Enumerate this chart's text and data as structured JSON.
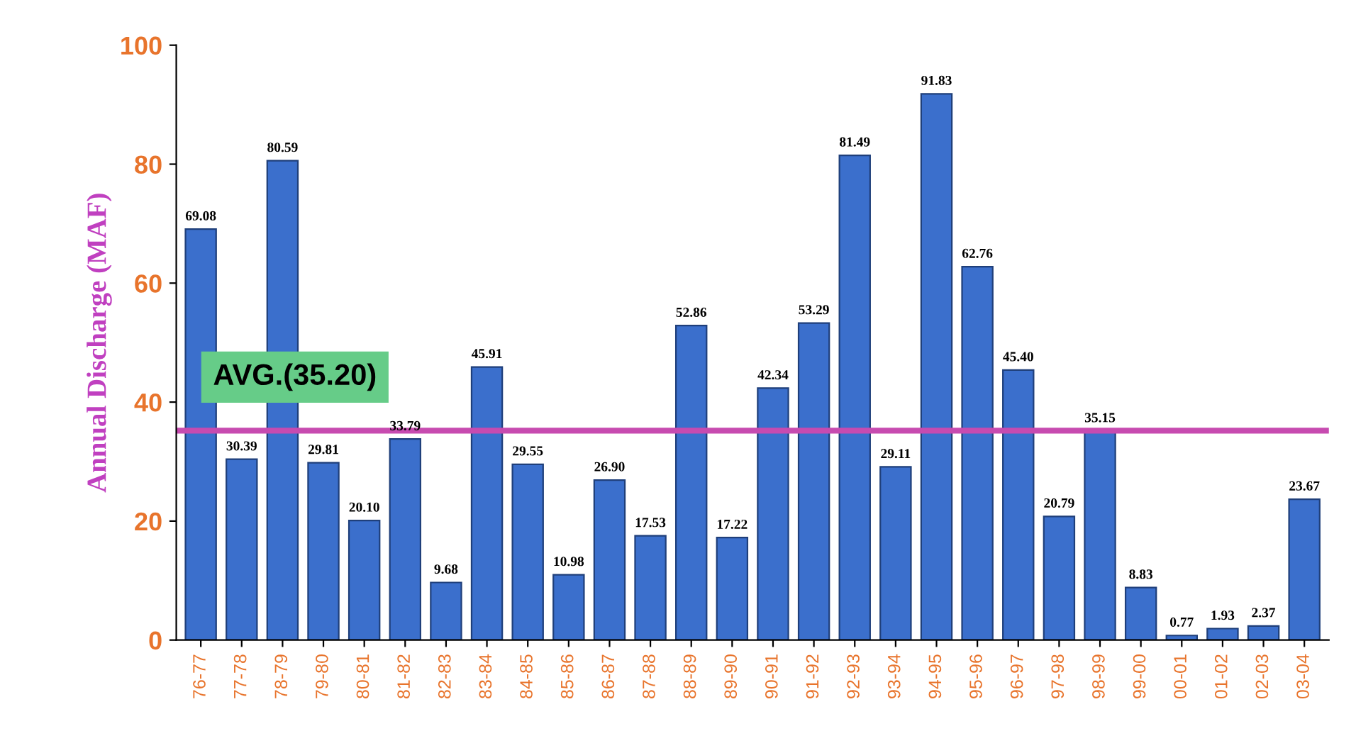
{
  "chart_data": {
    "type": "bar",
    "ylabel": "Annual Discharge (MAF)",
    "categories": [
      "76-77",
      "77-78",
      "78-79",
      "79-80",
      "80-81",
      "81-82",
      "82-83",
      "83-84",
      "84-85",
      "85-86",
      "86-87",
      "87-88",
      "88-89",
      "89-90",
      "90-91",
      "91-92",
      "92-93",
      "93-94",
      "94-95",
      "95-96",
      "96-97",
      "97-98",
      "98-99",
      "99-00",
      "00-01",
      "01-02",
      "02-03",
      "03-04"
    ],
    "values": [
      69.08,
      30.39,
      80.59,
      29.81,
      20.1,
      33.79,
      9.68,
      45.91,
      29.55,
      10.98,
      26.9,
      17.53,
      52.86,
      17.22,
      42.34,
      53.29,
      81.49,
      29.11,
      91.83,
      62.76,
      45.4,
      20.79,
      35.15,
      8.83,
      0.77,
      1.93,
      2.37,
      23.67
    ],
    "value_labels": [
      "69.08",
      "30.39",
      "80.59",
      "29.81",
      "20.10",
      "33.79",
      "9.68",
      "45.91",
      "29.55",
      "10.98",
      "26.90",
      "17.53",
      "52.86",
      "17.22",
      "42.34",
      "53.29",
      "81.49",
      "29.11",
      "91.83",
      "62.76",
      "45.40",
      "20.79",
      "35.15",
      "8.83",
      "0.77",
      "1.93",
      "2.37",
      "23.67"
    ],
    "color": "#3b6fcc",
    "ylim": [
      0,
      100
    ],
    "yticks": [
      0,
      20,
      40,
      60,
      80,
      100
    ],
    "grid": false,
    "ref_lines": [
      {
        "axis": "y",
        "value": 35.2,
        "label": "AVG.(35.20)",
        "color": "#c74bb0"
      }
    ]
  }
}
